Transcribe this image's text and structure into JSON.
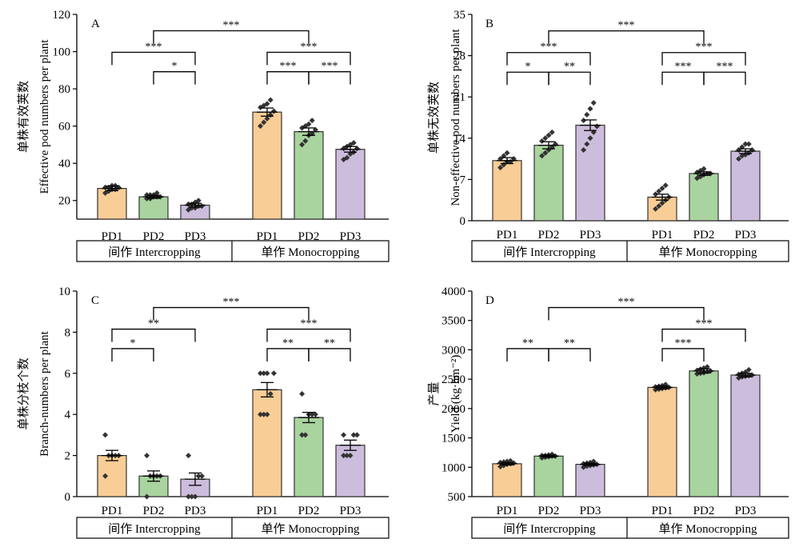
{
  "figure": {
    "panel_letters": [
      "A",
      "B",
      "C",
      "D"
    ]
  },
  "colors": {
    "PD1": "#F9CD96",
    "PD2": "#A9D49F",
    "PD3": "#CDBDDD",
    "edge": "#333333",
    "dots": "#333333"
  },
  "chart_data": [
    {
      "panel": "A",
      "type": "bar",
      "ylabel_cn": "单株有效荚数",
      "ylabel": "Effective pod numbers per plant",
      "ylim": [
        10,
        120
      ],
      "yticks": [
        20,
        40,
        60,
        80,
        100,
        120
      ],
      "groups": [
        {
          "name": "间作 Intercropping",
          "categories": [
            "PD1",
            "PD2",
            "PD3"
          ],
          "values": [
            26.5,
            22,
            17.5
          ],
          "errors": [
            1.2,
            0.8,
            1.0
          ],
          "points": [
            [
              24,
              25,
              26,
              26,
              27,
              27,
              27,
              28,
              28
            ],
            [
              21,
              21,
              22,
              22,
              22,
              23,
              23,
              23,
              24
            ],
            [
              15,
              16,
              16,
              17,
              17,
              18,
              18,
              19,
              20
            ]
          ]
        },
        {
          "name": "单作 Monocropping",
          "categories": [
            "PD1",
            "PD2",
            "PD3"
          ],
          "values": [
            67.5,
            57,
            47.5
          ],
          "errors": [
            2.2,
            2.0,
            1.5
          ],
          "points": [
            [
              60,
              62,
              64,
              66,
              68,
              70,
              71,
              72,
              74
            ],
            [
              50,
              52,
              55,
              56,
              58,
              59,
              60,
              61,
              63
            ],
            [
              42,
              43,
              45,
              46,
              48,
              48,
              49,
              50,
              51
            ]
          ]
        }
      ],
      "significance": [
        {
          "from": [
            "Monocropping",
            "PD1"
          ],
          "to": [
            "Monocropping",
            "PD2"
          ],
          "label": "***"
        },
        {
          "from": [
            "Monocropping",
            "PD2"
          ],
          "to": [
            "Monocropping",
            "PD3"
          ],
          "label": "***"
        },
        {
          "from": [
            "Monocropping",
            "PD1"
          ],
          "to": [
            "Monocropping",
            "PD3"
          ],
          "label": "***"
        },
        {
          "from": [
            "Intercropping",
            "PD2"
          ],
          "to": [
            "Intercropping",
            "PD3"
          ],
          "label": "*"
        },
        {
          "from": [
            "Intercropping",
            "PD1"
          ],
          "to": [
            "Intercropping",
            "PD3"
          ],
          "label": "***"
        },
        {
          "from": [
            "Intercropping",
            "PD2"
          ],
          "to": [
            "Monocropping",
            "PD2"
          ],
          "label": "***"
        }
      ]
    },
    {
      "panel": "B",
      "type": "bar",
      "ylabel_cn": "单株无效荚数",
      "ylabel": "Non-effective pod numbers per plant",
      "ylim": [
        0,
        35
      ],
      "yticks": [
        0,
        7,
        14,
        21,
        28,
        35
      ],
      "groups": [
        {
          "name": "间作 Intercropping",
          "categories": [
            "PD1",
            "PD2",
            "PD3"
          ],
          "values": [
            10.2,
            12.8,
            16.2
          ],
          "errors": [
            0.5,
            0.6,
            0.9
          ],
          "points": [
            [
              9,
              9.5,
              10,
              10,
              10.5,
              10.5,
              11,
              11.5
            ],
            [
              11,
              11.5,
              12,
              12.5,
              13,
              13.5,
              14,
              14.5,
              15
            ],
            [
              12,
              13,
              14,
              15,
              16,
              17,
              18,
              19,
              20
            ]
          ]
        },
        {
          "name": "单作 Monocropping",
          "categories": [
            "PD1",
            "PD2",
            "PD3"
          ],
          "values": [
            4,
            8,
            11.8
          ],
          "errors": [
            0.5,
            0.3,
            0.4
          ],
          "points": [
            [
              2,
              2.5,
              3,
              3.5,
              4,
              4.5,
              5,
              5.5,
              6
            ],
            [
              7.2,
              7.5,
              7.8,
              8,
              8,
              8.2,
              8.5,
              8.8
            ],
            [
              10.5,
              11,
              11.2,
              11.5,
              12,
              12,
              12.5,
              13,
              13
            ]
          ]
        }
      ],
      "significance": [
        {
          "from": [
            "Intercropping",
            "PD1"
          ],
          "to": [
            "Intercropping",
            "PD2"
          ],
          "label": "*"
        },
        {
          "from": [
            "Intercropping",
            "PD2"
          ],
          "to": [
            "Intercropping",
            "PD3"
          ],
          "label": "**"
        },
        {
          "from": [
            "Intercropping",
            "PD1"
          ],
          "to": [
            "Intercropping",
            "PD3"
          ],
          "label": "***"
        },
        {
          "from": [
            "Monocropping",
            "PD1"
          ],
          "to": [
            "Monocropping",
            "PD2"
          ],
          "label": "***"
        },
        {
          "from": [
            "Monocropping",
            "PD2"
          ],
          "to": [
            "Monocropping",
            "PD3"
          ],
          "label": "***"
        },
        {
          "from": [
            "Monocropping",
            "PD1"
          ],
          "to": [
            "Monocropping",
            "PD3"
          ],
          "label": "***"
        },
        {
          "from": [
            "Intercropping",
            "PD2"
          ],
          "to": [
            "Monocropping",
            "PD2"
          ],
          "label": "***"
        }
      ]
    },
    {
      "panel": "C",
      "type": "bar",
      "ylabel_cn": "单株分枝个数",
      "ylabel": "Branch-numbers per plant",
      "ylim": [
        0,
        10
      ],
      "yticks": [
        0,
        2,
        4,
        6,
        8,
        10
      ],
      "groups": [
        {
          "name": "间作 Intercropping",
          "categories": [
            "PD1",
            "PD2",
            "PD3"
          ],
          "values": [
            2,
            1,
            0.85
          ],
          "errors": [
            0.25,
            0.25,
            0.3
          ],
          "points": [
            [
              1,
              2,
              2,
              2,
              2,
              3
            ],
            [
              0,
              1,
              1,
              1,
              1,
              2
            ],
            [
              0,
              0,
              0,
              1,
              1,
              2
            ]
          ]
        },
        {
          "name": "单作 Monocropping",
          "categories": [
            "PD1",
            "PD2",
            "PD3"
          ],
          "values": [
            5.2,
            3.85,
            2.5
          ],
          "errors": [
            0.35,
            0.25,
            0.25
          ],
          "points": [
            [
              4,
              4,
              4,
              5,
              6,
              6,
              6,
              6
            ],
            [
              3,
              3,
              4,
              4,
              4,
              5
            ],
            [
              2,
              2,
              2,
              3,
              3,
              3
            ]
          ]
        }
      ],
      "significance": [
        {
          "from": [
            "Intercropping",
            "PD1"
          ],
          "to": [
            "Intercropping",
            "PD2"
          ],
          "label": "*"
        },
        {
          "from": [
            "Intercropping",
            "PD1"
          ],
          "to": [
            "Intercropping",
            "PD3"
          ],
          "label": "**"
        },
        {
          "from": [
            "Monocropping",
            "PD1"
          ],
          "to": [
            "Monocropping",
            "PD2"
          ],
          "label": "**"
        },
        {
          "from": [
            "Monocropping",
            "PD2"
          ],
          "to": [
            "Monocropping",
            "PD3"
          ],
          "label": "**"
        },
        {
          "from": [
            "Monocropping",
            "PD1"
          ],
          "to": [
            "Monocropping",
            "PD3"
          ],
          "label": "***"
        },
        {
          "from": [
            "Intercropping",
            "PD2"
          ],
          "to": [
            "Monocropping",
            "PD2"
          ],
          "label": "***"
        }
      ]
    },
    {
      "panel": "D",
      "type": "bar",
      "ylabel_cn": "产量",
      "ylabel": "Yield (kg·hm⁻²)",
      "ylim": [
        500,
        4000
      ],
      "yticks": [
        500,
        1000,
        1500,
        2000,
        2500,
        3000,
        3500,
        4000
      ],
      "groups": [
        {
          "name": "间作 Intercropping",
          "categories": [
            "PD1",
            "PD2",
            "PD3"
          ],
          "values": [
            1060,
            1190,
            1050
          ],
          "errors": [
            20,
            20,
            20
          ],
          "points": [
            [
              1010,
              1030,
              1050,
              1060,
              1070,
              1080,
              1090,
              1100,
              1110
            ],
            [
              1160,
              1170,
              1180,
              1190,
              1190,
              1200,
              1200,
              1210,
              1220
            ],
            [
              1000,
              1020,
              1030,
              1040,
              1050,
              1060,
              1070,
              1080,
              1100
            ]
          ]
        },
        {
          "name": "单作 Monocropping",
          "categories": [
            "PD1",
            "PD2",
            "PD3"
          ],
          "values": [
            2360,
            2640,
            2570
          ],
          "errors": [
            25,
            35,
            30
          ],
          "points": [
            [
              2320,
              2330,
              2340,
              2350,
              2360,
              2370,
              2380,
              2390,
              2410
            ],
            [
              2590,
              2600,
              2610,
              2630,
              2640,
              2650,
              2670,
              2690,
              2710
            ],
            [
              2520,
              2540,
              2550,
              2560,
              2570,
              2580,
              2600,
              2620,
              2660
            ]
          ]
        }
      ],
      "significance": [
        {
          "from": [
            "Intercropping",
            "PD1"
          ],
          "to": [
            "Intercropping",
            "PD2"
          ],
          "label": "**"
        },
        {
          "from": [
            "Intercropping",
            "PD2"
          ],
          "to": [
            "Intercropping",
            "PD3"
          ],
          "label": "**"
        },
        {
          "from": [
            "Monocropping",
            "PD1"
          ],
          "to": [
            "Monocropping",
            "PD2"
          ],
          "label": "***"
        },
        {
          "from": [
            "Monocropping",
            "PD1"
          ],
          "to": [
            "Monocropping",
            "PD3"
          ],
          "label": "***"
        },
        {
          "from": [
            "Intercropping",
            "PD2"
          ],
          "to": [
            "Monocropping",
            "PD2"
          ],
          "label": "***"
        }
      ]
    }
  ]
}
